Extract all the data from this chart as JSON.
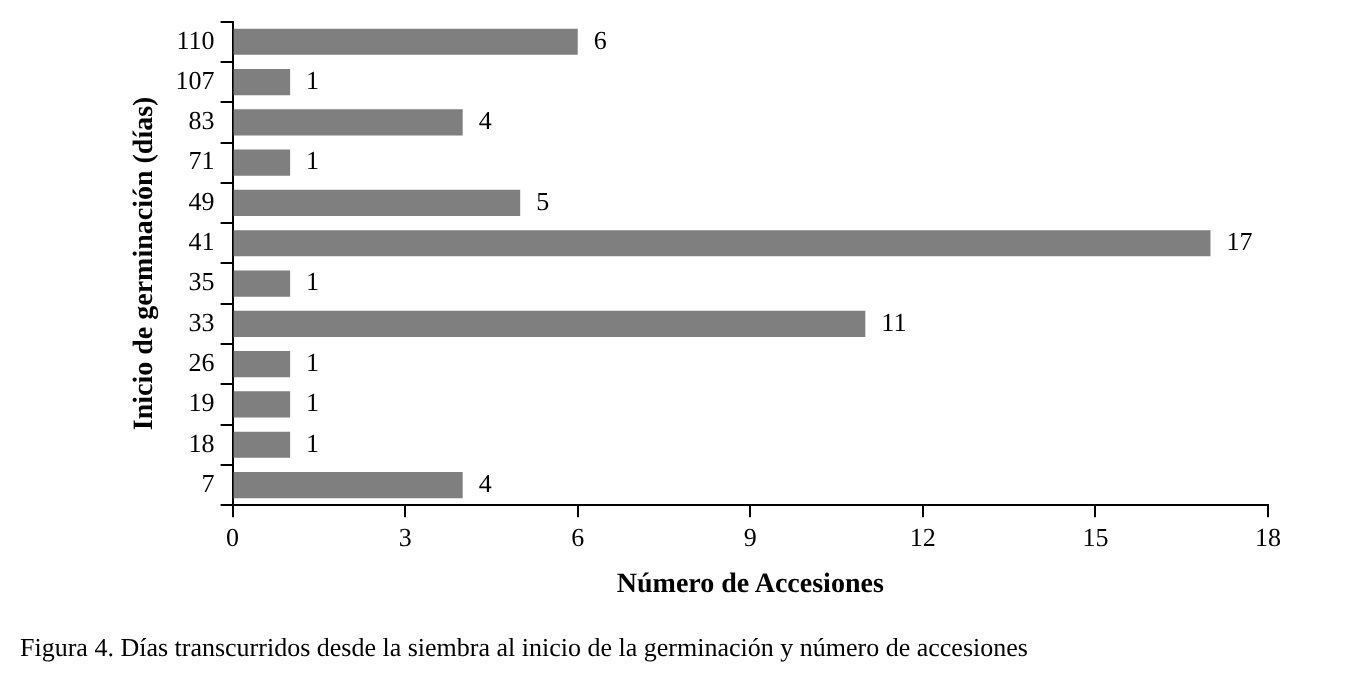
{
  "chart_data": {
    "type": "bar",
    "orientation": "horizontal",
    "xlabel": "Número de Accesiones",
    "ylabel": "Inicio de germinación (días)",
    "categories": [
      "110",
      "107",
      "83",
      "71",
      "49",
      "41",
      "35",
      "33",
      "26",
      "19",
      "18",
      "7"
    ],
    "values": [
      6,
      1,
      4,
      1,
      5,
      17,
      1,
      11,
      1,
      1,
      1,
      4
    ],
    "color": "#7f7f7f",
    "xlim": [
      0,
      18
    ],
    "xticks": [
      0,
      3,
      6,
      9,
      12,
      15,
      18
    ],
    "grid": false,
    "legend": false,
    "data_labels": true,
    "annotations": [
      "Figura 4. Días transcurridos desde la siembra al inicio de la germinación y número de accesiones"
    ]
  }
}
